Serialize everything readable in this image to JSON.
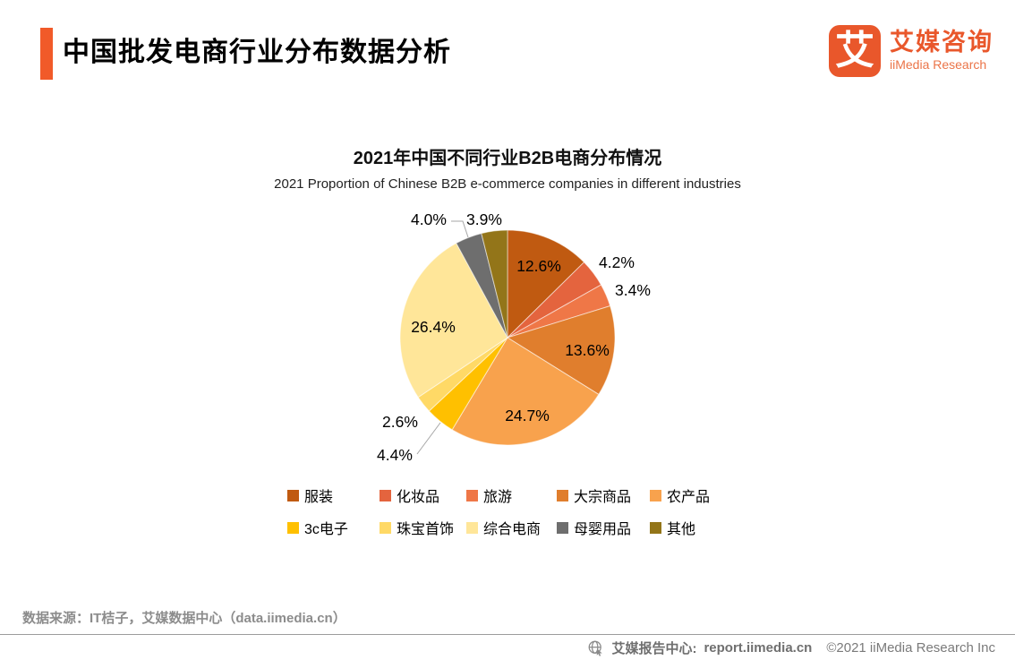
{
  "page": {
    "title": "中国批发电商行业分布数据分析",
    "logo": {
      "mark": "艾",
      "name_cn": "艾媒咨询",
      "name_en": "iiMedia Research"
    },
    "source_note": "数据来源：IT桔子，艾媒数据中心（data.iimedia.cn）",
    "footer": {
      "center_label": "艾媒报告中心:",
      "center_url": "report.iimedia.cn",
      "copyright": "©2021  iiMedia Research  Inc"
    },
    "colors": {
      "accent_orange": "#F15A29",
      "logo_orange": "#E9572B",
      "gray_text": "#8C8C8C",
      "footer_gray": "#757575",
      "leader_line": "#A6A6A6"
    }
  },
  "chart_data": {
    "type": "pie",
    "title": "2021年中国不同行业B2B电商分布情况",
    "subtitle": "2021 Proportion of Chinese B2B e-commerce companies in different industries",
    "unit": "%",
    "start_angle_deg": 0,
    "direction": "clockwise",
    "legend_position": "bottom",
    "slices": [
      {
        "label": "服装",
        "value": 12.6,
        "display": "12.6%",
        "color": "#C05A11"
      },
      {
        "label": "化妆品",
        "value": 4.2,
        "display": "4.2%",
        "color": "#E4643E"
      },
      {
        "label": "旅游",
        "value": 3.4,
        "display": "3.4%",
        "color": "#EF7747"
      },
      {
        "label": "大宗商品",
        "value": 13.6,
        "display": "13.6%",
        "color": "#E07E2D"
      },
      {
        "label": "农产品",
        "value": 24.7,
        "display": "24.7%",
        "color": "#F8A24D"
      },
      {
        "label": "3c电子",
        "value": 4.4,
        "display": "4.4%",
        "color": "#FFC000"
      },
      {
        "label": "珠宝首饰",
        "value": 2.6,
        "display": "2.6%",
        "color": "#FFD966"
      },
      {
        "label": "综合电商",
        "value": 26.4,
        "display": "26.4%",
        "color": "#FFE699"
      },
      {
        "label": "母婴用品",
        "value": 4.0,
        "display": "4.0%",
        "color": "#6E6E6E"
      },
      {
        "label": "其他",
        "value": 3.9,
        "display": "3.9%",
        "color": "#937519"
      }
    ]
  }
}
